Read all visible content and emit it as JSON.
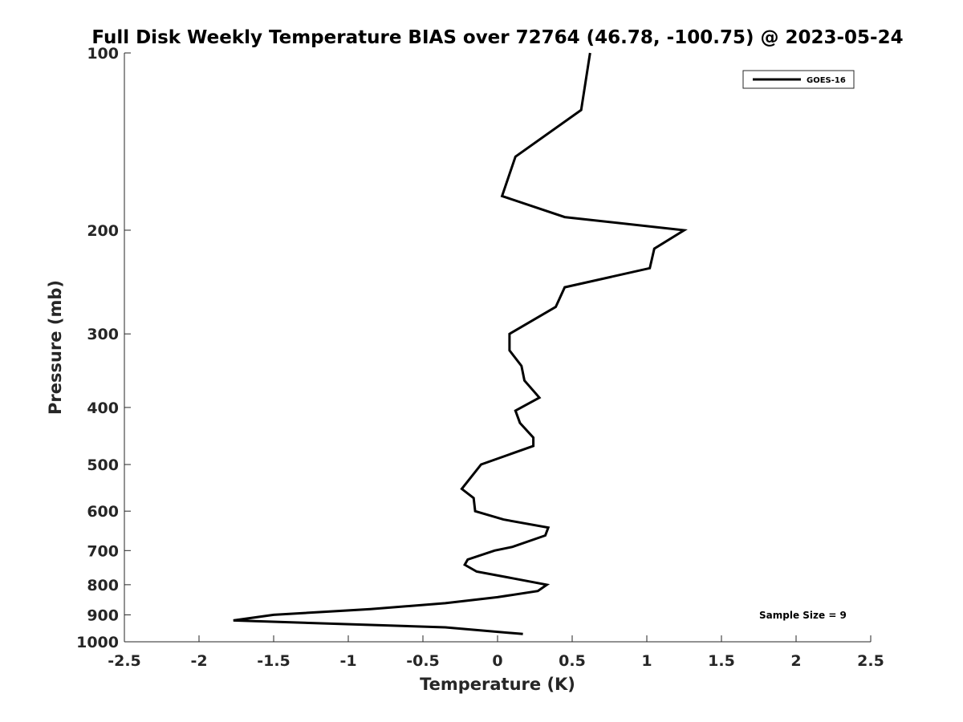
{
  "chart_data": {
    "type": "line",
    "title": "Full Disk Weekly Temperature BIAS over 72764 (46.78, -100.75) @ 2023-05-24",
    "xlabel": "Temperature (K)",
    "ylabel": "Pressure (mb)",
    "xlim": [
      -2.5,
      2.5
    ],
    "ylim": [
      100,
      1000
    ],
    "y_scale": "log",
    "y_reversed": true,
    "xticks": [
      -2.5,
      -2,
      -1.5,
      -1,
      -0.5,
      0,
      0.5,
      1,
      1.5,
      2,
      2.5
    ],
    "xtick_labels": [
      "-2.5",
      "-2",
      "-1.5",
      "-1",
      "-0.5",
      "0",
      "0.5",
      "1",
      "1.5",
      "2",
      "2.5"
    ],
    "yticks": [
      100,
      200,
      300,
      400,
      500,
      600,
      700,
      800,
      900,
      1000
    ],
    "ytick_labels": [
      "100",
      "200",
      "300",
      "400",
      "500",
      "600",
      "700",
      "800",
      "900",
      "1000"
    ],
    "grid": false,
    "legend_position": "top-right",
    "annotation": "Sample Size = 9",
    "series": [
      {
        "name": "GOES-16",
        "color": "#000000",
        "points": [
          {
            "x": 0.62,
            "y": 100
          },
          {
            "x": 0.56,
            "y": 125
          },
          {
            "x": 0.12,
            "y": 150
          },
          {
            "x": 0.03,
            "y": 175
          },
          {
            "x": 0.45,
            "y": 190
          },
          {
            "x": 1.25,
            "y": 200
          },
          {
            "x": 1.05,
            "y": 215
          },
          {
            "x": 1.02,
            "y": 232
          },
          {
            "x": 0.45,
            "y": 250
          },
          {
            "x": 0.39,
            "y": 270
          },
          {
            "x": 0.08,
            "y": 300
          },
          {
            "x": 0.08,
            "y": 320
          },
          {
            "x": 0.16,
            "y": 340
          },
          {
            "x": 0.18,
            "y": 360
          },
          {
            "x": 0.28,
            "y": 385
          },
          {
            "x": 0.12,
            "y": 405
          },
          {
            "x": 0.15,
            "y": 425
          },
          {
            "x": 0.24,
            "y": 450
          },
          {
            "x": 0.24,
            "y": 465
          },
          {
            "x": -0.11,
            "y": 500
          },
          {
            "x": -0.24,
            "y": 550
          },
          {
            "x": -0.16,
            "y": 570
          },
          {
            "x": -0.15,
            "y": 600
          },
          {
            "x": 0.04,
            "y": 620
          },
          {
            "x": 0.34,
            "y": 640
          },
          {
            "x": 0.32,
            "y": 660
          },
          {
            "x": 0.1,
            "y": 690
          },
          {
            "x": -0.02,
            "y": 700
          },
          {
            "x": -0.2,
            "y": 725
          },
          {
            "x": -0.22,
            "y": 740
          },
          {
            "x": -0.14,
            "y": 760
          },
          {
            "x": 0.1,
            "y": 780
          },
          {
            "x": 0.33,
            "y": 800
          },
          {
            "x": 0.27,
            "y": 820
          },
          {
            "x": 0.0,
            "y": 840
          },
          {
            "x": -0.35,
            "y": 860
          },
          {
            "x": -0.85,
            "y": 880
          },
          {
            "x": -1.5,
            "y": 900
          },
          {
            "x": -1.77,
            "y": 920
          },
          {
            "x": -0.35,
            "y": 945
          },
          {
            "x": 0.17,
            "y": 970
          }
        ]
      }
    ]
  }
}
